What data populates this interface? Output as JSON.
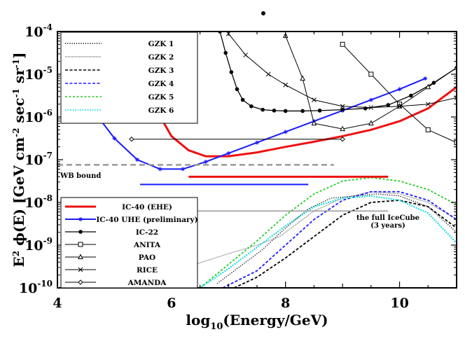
{
  "chart_data": {
    "type": "line",
    "title": "",
    "xlabel": "log10(Energy/GeV)",
    "ylabel": "E2 φ(E) [GeV cm-2 sec-1 sr-1]",
    "xlim": [
      4,
      11
    ],
    "ylim_log10": [
      -10,
      -4
    ],
    "xticks": [
      "4",
      "6",
      "8",
      "10"
    ],
    "yticks": [
      {
        "v": -10,
        "exp": "-10"
      },
      {
        "v": -9,
        "exp": "-9"
      },
      {
        "v": -8,
        "exp": "-8"
      },
      {
        "v": -7,
        "exp": "-7"
      },
      {
        "v": -6,
        "exp": "-6"
      },
      {
        "v": -5,
        "exp": "-5"
      },
      {
        "v": -4,
        "exp": "-4"
      }
    ],
    "tick_base": "10",
    "annotations": {
      "wb_bound": "WB bound",
      "full_icecube_line1": "the full IceCube",
      "full_icecube_line2": "(3 years)"
    },
    "model_legend": [
      {
        "name": "GZK 1",
        "color": "#000000",
        "dash": "1.2,2"
      },
      {
        "name": "GZK 2",
        "color": "#555555",
        "dash": "0.8,1.2"
      },
      {
        "name": "GZK 3",
        "color": "#000000",
        "dash": "4,2.5"
      },
      {
        "name": "GZK 4",
        "color": "#1a1aff",
        "dash": "4,2.5"
      },
      {
        "name": "GZK 5",
        "color": "#22cc22",
        "dash": "3,2.5"
      },
      {
        "name": "GZK 6",
        "color": "#22dddd",
        "dash": "2,1.5"
      }
    ],
    "limit_legend": [
      {
        "name": "IC-40 (EHE)",
        "color": "#ee1111",
        "width": 3,
        "marker": "none"
      },
      {
        "name": "IC-40 UHE (preliminary)",
        "color": "#1a1aff",
        "width": 2,
        "marker": "star"
      },
      {
        "name": "IC-22",
        "color": "#000000",
        "width": 1.3,
        "marker": "dot"
      },
      {
        "name": "ANITA",
        "color": "#000000",
        "width": 1,
        "marker": "square"
      },
      {
        "name": "PAO",
        "color": "#000000",
        "width": 1,
        "marker": "triangle"
      },
      {
        "name": "RICE",
        "color": "#000000",
        "width": 1,
        "marker": "x"
      },
      {
        "name": "AMANDA",
        "color": "#000000",
        "width": 1,
        "marker": "diamond"
      }
    ],
    "series": [
      {
        "name": "GZK 1",
        "type": "model",
        "color": "#000000",
        "dash": "1.2,2",
        "width": 1.3,
        "x": [
          6.8,
          7.2,
          7.6,
          8.0,
          8.4,
          8.8,
          9.2,
          9.6,
          10.0,
          10.5,
          11.0
        ],
        "y": [
          -9.9,
          -9.5,
          -9.1,
          -8.6,
          -8.15,
          -7.9,
          -7.85,
          -7.8,
          -7.85,
          -8.1,
          -8.7
        ]
      },
      {
        "name": "GZK 2",
        "type": "model",
        "color": "#555555",
        "dash": "0.8,1.2",
        "width": 1.3,
        "x": [
          6.3,
          7.0,
          7.5,
          7.9,
          8.2,
          8.5,
          9.0,
          9.5,
          10.0,
          10.5,
          11.0
        ],
        "y": [
          -9.5,
          -9.2,
          -9.0,
          -8.8,
          -8.5,
          -8.2,
          -7.9,
          -7.75,
          -7.8,
          -8.0,
          -8.4
        ]
      },
      {
        "name": "GZK 3",
        "type": "model",
        "color": "#000000",
        "dash": "4,2.5",
        "width": 1.8,
        "x": [
          7.1,
          7.5,
          8.0,
          8.5,
          9.0,
          9.5,
          10.0,
          10.5,
          11.0
        ],
        "y": [
          -10.0,
          -9.75,
          -9.3,
          -8.8,
          -8.3,
          -8.0,
          -7.95,
          -8.1,
          -8.6
        ]
      },
      {
        "name": "GZK 4",
        "type": "model",
        "color": "#1a1aff",
        "dash": "4,2.5",
        "width": 1.8,
        "x": [
          6.9,
          7.5,
          8.0,
          8.5,
          9.0,
          9.5,
          10.0,
          10.5,
          11.0
        ],
        "y": [
          -10.0,
          -9.6,
          -9.0,
          -8.4,
          -7.95,
          -7.75,
          -7.75,
          -7.95,
          -8.4
        ]
      },
      {
        "name": "GZK 5",
        "type": "model",
        "color": "#22cc22",
        "dash": "3,2.5",
        "width": 1.8,
        "x": [
          6.5,
          7.0,
          7.5,
          8.0,
          8.5,
          9.0,
          9.5,
          10.0,
          10.5,
          11.0
        ],
        "y": [
          -10.0,
          -9.45,
          -8.9,
          -8.3,
          -7.8,
          -7.5,
          -7.42,
          -7.5,
          -7.7,
          -8.05
        ]
      },
      {
        "name": "GZK 6",
        "type": "model",
        "color": "#22dddd",
        "dash": "2,1.5",
        "width": 2.2,
        "x": [
          6.5,
          7.0,
          7.5,
          8.0,
          8.5,
          9.0,
          9.5,
          10.0,
          10.5,
          11.0
        ],
        "y": [
          -10.0,
          -9.55,
          -9.05,
          -8.55,
          -8.1,
          -7.9,
          -7.85,
          -7.95,
          -8.25,
          -8.95
        ]
      },
      {
        "name": "IC-40 (EHE)",
        "type": "limit",
        "color": "#ee1111",
        "width": 3,
        "x": [
          5.85,
          6.0,
          6.3,
          6.6,
          7.0,
          7.5,
          8.0,
          8.5,
          9.0,
          9.5,
          10.0,
          10.5,
          11.0
        ],
        "y": [
          -6.1,
          -6.45,
          -6.78,
          -6.92,
          -6.92,
          -6.83,
          -6.7,
          -6.58,
          -6.45,
          -6.3,
          -6.1,
          -5.8,
          -5.3
        ]
      },
      {
        "name": "IC-40 UHE (preliminary)",
        "type": "limit",
        "color": "#1a1aff",
        "width": 2,
        "marker": "star",
        "x": [
          4.6,
          5.0,
          5.4,
          5.8,
          6.2,
          6.6,
          7.0,
          7.5,
          8.0,
          8.5,
          9.0,
          9.5,
          10.0,
          10.45
        ],
        "y": [
          -5.8,
          -6.5,
          -7.0,
          -7.22,
          -7.22,
          -7.05,
          -6.85,
          -6.6,
          -6.35,
          -6.1,
          -5.85,
          -5.6,
          -5.35,
          -5.1
        ]
      },
      {
        "name": "IC-22",
        "type": "limit",
        "color": "#000000",
        "width": 1.3,
        "marker": "dot",
        "x": [
          6.85,
          6.95,
          7.05,
          7.15,
          7.25,
          7.4,
          7.6,
          7.8,
          8.0,
          8.3,
          8.6,
          9.0,
          9.4,
          9.8,
          10.2,
          10.6,
          11.0
        ],
        "y": [
          -4.0,
          -4.5,
          -4.95,
          -5.35,
          -5.6,
          -5.75,
          -5.83,
          -5.85,
          -5.86,
          -5.86,
          -5.85,
          -5.83,
          -5.8,
          -5.72,
          -5.5,
          -5.2,
          -4.85
        ]
      },
      {
        "name": "ANITA",
        "type": "limit",
        "color": "#000000",
        "width": 1,
        "marker": "square",
        "x": [
          9.0,
          9.5,
          10.0,
          10.5,
          11.0
        ],
        "y": [
          -4.3,
          -5.0,
          -5.7,
          -6.3,
          -6.6
        ]
      },
      {
        "name": "PAO",
        "type": "limit",
        "color": "#000000",
        "width": 1,
        "marker": "triangle",
        "x": [
          8.0,
          8.3,
          8.5,
          9.0,
          9.5,
          10.0,
          10.5,
          11.0
        ],
        "y": [
          -4.1,
          -5.1,
          -6.15,
          -6.28,
          -6.15,
          -5.75,
          -5.3,
          -4.85
        ]
      },
      {
        "name": "RICE",
        "type": "limit",
        "color": "#000000",
        "width": 1,
        "marker": "x",
        "x": [
          7.0,
          7.3,
          7.7,
          8.0,
          8.5,
          9.0,
          9.5,
          10.0,
          10.5,
          11.0
        ],
        "y": [
          -4.05,
          -4.55,
          -5.0,
          -5.25,
          -5.6,
          -5.75,
          -5.78,
          -5.75,
          -5.7,
          -5.55
        ]
      },
      {
        "name": "AMANDA",
        "type": "limit",
        "color": "#000000",
        "width": 1,
        "marker": "diamond",
        "x": [
          5.3,
          9.0
        ],
        "y": [
          -6.52,
          -6.52
        ]
      }
    ],
    "horizontal_lines": [
      {
        "name": "WB bound",
        "color": "#999999",
        "dash": "8,5",
        "width": 2.5,
        "x": [
          4.0,
          8.85
        ],
        "y": -7.12
      },
      {
        "name": "IC-40 (EHE) range",
        "color": "#ee1111",
        "width": 3,
        "x": [
          6.3,
          9.8
        ],
        "y": -7.4
      },
      {
        "name": "IC-40 UHE range",
        "color": "#1a1aff",
        "width": 2,
        "x": [
          5.45,
          8.4
        ],
        "y": -7.58
      },
      {
        "name": "full IceCube",
        "color": "#999999",
        "width": 1.5,
        "x": [
          6.4,
          9.8
        ],
        "y": -8.2
      }
    ]
  }
}
